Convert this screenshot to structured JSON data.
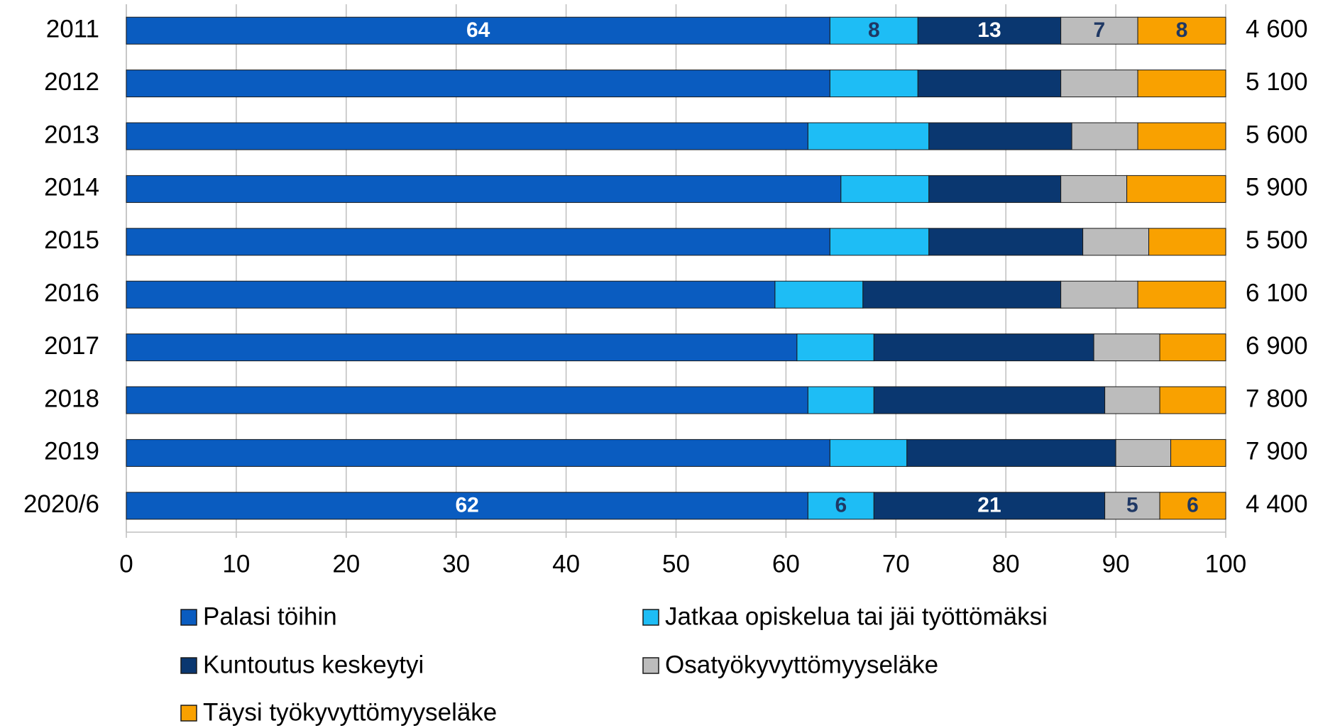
{
  "chart_data": {
    "type": "stacked_bar_horizontal",
    "categories": [
      "2011",
      "2012",
      "2013",
      "2014",
      "2015",
      "2016",
      "2017",
      "2018",
      "2019",
      "2020/6"
    ],
    "series": [
      {
        "name": "Palasi töihin",
        "color": "#0a5cc0",
        "label_color": "#ffffff",
        "values": [
          64,
          64,
          62,
          65,
          64,
          59,
          61,
          62,
          64,
          62
        ],
        "value_labels": [
          "64",
          null,
          null,
          null,
          null,
          null,
          null,
          null,
          null,
          "62"
        ]
      },
      {
        "name": "Jatkaa opiskelua tai jäi työttömäksi",
        "color": "#1ebdf5",
        "label_color": "#1f3864",
        "values": [
          8,
          8,
          11,
          8,
          9,
          8,
          7,
          6,
          7,
          6
        ],
        "value_labels": [
          "8",
          null,
          null,
          null,
          null,
          null,
          null,
          null,
          null,
          "6"
        ]
      },
      {
        "name": "Kuntoutus keskeytyi",
        "color": "#0a3770",
        "label_color": "#ffffff",
        "values": [
          13,
          13,
          13,
          12,
          14,
          18,
          20,
          21,
          19,
          21
        ],
        "value_labels": [
          "13",
          null,
          null,
          null,
          null,
          null,
          null,
          null,
          null,
          "21"
        ]
      },
      {
        "name": "Osatyökyvyttömyyseläke",
        "color": "#bcbcbc",
        "label_color": "#1f3864",
        "values": [
          7,
          7,
          6,
          6,
          6,
          7,
          6,
          5,
          5,
          5
        ],
        "value_labels": [
          "7",
          null,
          null,
          null,
          null,
          null,
          null,
          null,
          null,
          "5"
        ]
      },
      {
        "name": "Täysi työkyvyttömyyseläke",
        "color": "#f9a100",
        "label_color": "#1f3864",
        "values": [
          8,
          8,
          8,
          9,
          7,
          8,
          6,
          6,
          5,
          6
        ],
        "value_labels": [
          "8",
          null,
          null,
          null,
          null,
          null,
          null,
          null,
          null,
          "6"
        ]
      }
    ],
    "totals": [
      {
        "value": 4600,
        "label": "4 600"
      },
      {
        "value": 5100,
        "label": "5 100"
      },
      {
        "value": 5600,
        "label": "5 600"
      },
      {
        "value": 5900,
        "label": "5 900"
      },
      {
        "value": 5500,
        "label": "5 500"
      },
      {
        "value": 6100,
        "label": "6 100"
      },
      {
        "value": 6900,
        "label": "6 900"
      },
      {
        "value": 7800,
        "label": "7 800"
      },
      {
        "value": 7900,
        "label": "7 900"
      },
      {
        "value": 4400,
        "label": "4 400"
      }
    ],
    "xlim": [
      0,
      100
    ],
    "xticks": [
      0,
      10,
      20,
      30,
      40,
      50,
      60,
      70,
      80,
      90,
      100
    ],
    "grid": true,
    "legend": "bottom"
  }
}
